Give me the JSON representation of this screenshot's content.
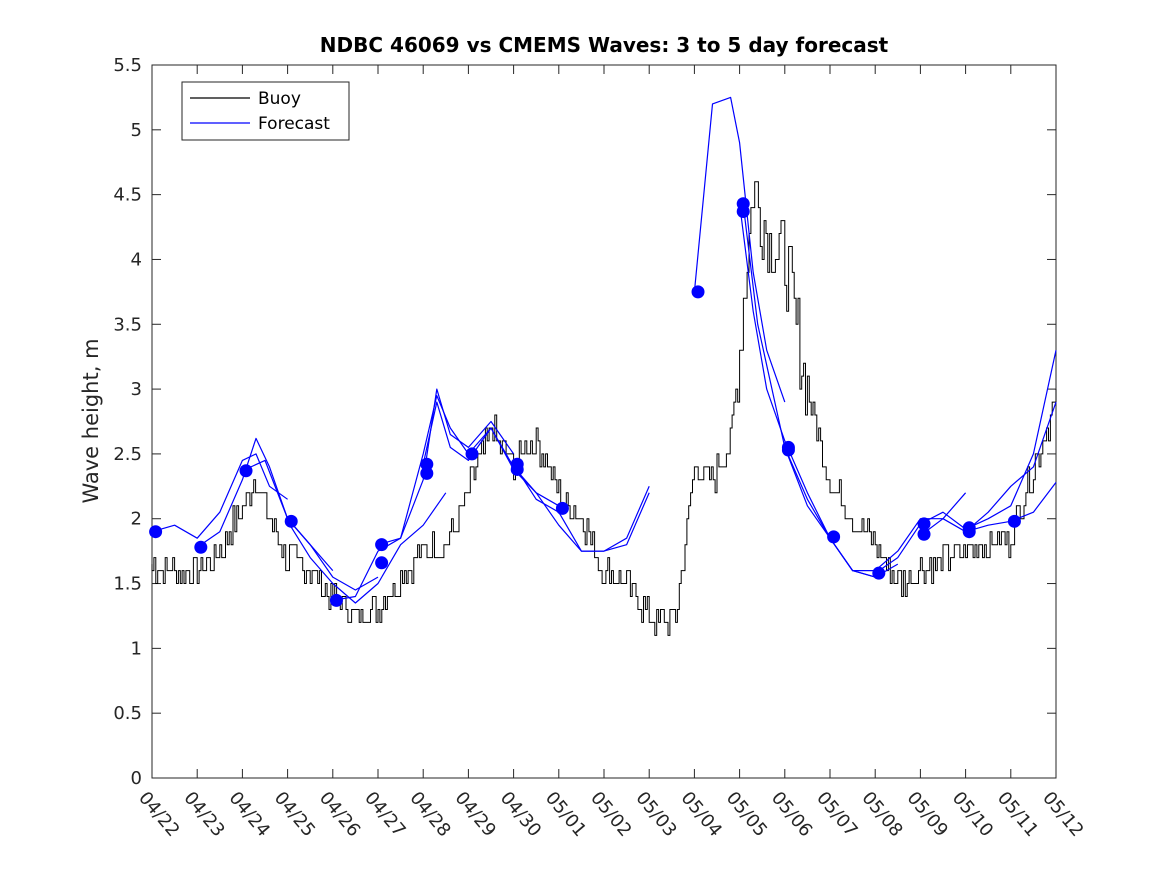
{
  "chart_data": {
    "type": "line",
    "title": "NDBC 46069 vs CMEMS Waves: 3 to 5 day forecast",
    "xlabel": "",
    "ylabel": "Wave height, m",
    "xlim": [
      0,
      20
    ],
    "ylim": [
      0,
      5.5
    ],
    "yticks": [
      0,
      0.5,
      1,
      1.5,
      2,
      2.5,
      3,
      3.5,
      4,
      4.5,
      5,
      5.5
    ],
    "ytick_labels": [
      "0",
      "0.5",
      "1",
      "1.5",
      "2",
      "2.5",
      "3",
      "3.5",
      "4",
      "4.5",
      "5",
      "5.5"
    ],
    "xtick_labels": [
      "04/22",
      "04/23",
      "04/24",
      "04/25",
      "04/26",
      "04/27",
      "04/28",
      "04/29",
      "04/30",
      "05/01",
      "05/02",
      "05/03",
      "05/04",
      "05/05",
      "05/06",
      "05/07",
      "05/08",
      "05/09",
      "05/10",
      "05/11",
      "05/12"
    ],
    "grid": false,
    "legend_position": "top-left",
    "colors": {
      "buoy": "#000000",
      "forecast": "#0000ff"
    },
    "buoy": {
      "name": "Buoy",
      "x": [
        0,
        0.5,
        1,
        1.5,
        2,
        2.3,
        2.6,
        3,
        3.5,
        4,
        4.5,
        5,
        5.5,
        6,
        6.5,
        7,
        7.5,
        8,
        8.3,
        8.6,
        9,
        9.5,
        10,
        10.5,
        11,
        11.3,
        11.6,
        12,
        12.4,
        12.8,
        13,
        13.3,
        13.6,
        14,
        14.5,
        15,
        15.5,
        16,
        16.5,
        17,
        17.5,
        18,
        18.5,
        19,
        19.3,
        19.6,
        20
      ],
      "y": [
        1.65,
        1.6,
        1.6,
        1.75,
        2.1,
        2.3,
        2.0,
        1.7,
        1.6,
        1.4,
        1.25,
        1.3,
        1.55,
        1.75,
        1.8,
        2.2,
        2.7,
        2.4,
        2.6,
        2.55,
        2.2,
        2.0,
        1.6,
        1.5,
        1.25,
        1.2,
        1.25,
        2.4,
        2.3,
        2.6,
        3.3,
        4.6,
        4.2,
        4.0,
        3.0,
        2.3,
        2.0,
        1.8,
        1.5,
        1.6,
        1.7,
        1.75,
        1.8,
        1.85,
        2.2,
        2.5,
        2.9
      ]
    },
    "forecasts": [
      {
        "name": "Forecast",
        "x": [
          0,
          0.5,
          1,
          1.5,
          2,
          2.3,
          2.6,
          3
        ],
        "y": [
          1.9,
          1.95,
          1.85,
          2.05,
          2.45,
          2.5,
          2.25,
          2.15
        ]
      },
      {
        "x": [
          1,
          1.5,
          2,
          2.3,
          2.6,
          3,
          3.5,
          4
        ],
        "y": [
          1.78,
          1.9,
          2.3,
          2.62,
          2.4,
          2.0,
          1.8,
          1.6
        ]
      },
      {
        "x": [
          2,
          2.5,
          3,
          3.5,
          4,
          4.5,
          5
        ],
        "y": [
          2.37,
          2.45,
          2.0,
          1.8,
          1.55,
          1.45,
          1.55
        ]
      },
      {
        "x": [
          3,
          3.5,
          4,
          4.5,
          5,
          5.5,
          6,
          6.5
        ],
        "y": [
          1.98,
          1.7,
          1.5,
          1.35,
          1.5,
          1.8,
          1.95,
          2.2
        ]
      },
      {
        "x": [
          4,
          4.5,
          5,
          5.5,
          6,
          6.3,
          6.6,
          7
        ],
        "y": [
          1.37,
          1.4,
          1.75,
          1.85,
          2.5,
          2.95,
          2.7,
          2.5
        ]
      },
      {
        "x": [
          5,
          5.5,
          6,
          6.3,
          6.6,
          7,
          7.5,
          8
        ],
        "y": [
          1.8,
          1.85,
          2.3,
          3.0,
          2.65,
          2.55,
          2.75,
          2.5
        ]
      },
      {
        "x": [
          6,
          6.3,
          6.6,
          7,
          7.5,
          8,
          8.5,
          9
        ],
        "y": [
          2.42,
          2.9,
          2.55,
          2.45,
          2.7,
          2.4,
          2.2,
          2.1
        ]
      },
      {
        "x": [
          7,
          7.5,
          8,
          8.5,
          9,
          9.5,
          10,
          10.5,
          11
        ],
        "y": [
          2.5,
          2.7,
          2.38,
          2.2,
          1.95,
          1.75,
          1.75,
          1.85,
          2.25
        ]
      },
      {
        "x": [
          8,
          8.5,
          9,
          9.5,
          10,
          10.5,
          11
        ],
        "y": [
          2.42,
          2.15,
          2.05,
          1.75,
          1.75,
          1.8,
          2.2
        ]
      },
      {
        "x": [
          12,
          12.4,
          12.8,
          13,
          13.3,
          13.6,
          14
        ],
        "y": [
          3.75,
          5.2,
          5.25,
          4.9,
          3.9,
          3.3,
          2.9
        ]
      },
      {
        "x": [
          13,
          13.3,
          13.6,
          14,
          14.5,
          15,
          15.5,
          16
        ],
        "y": [
          4.43,
          3.6,
          3.0,
          2.6,
          2.2,
          1.85,
          1.6,
          1.55
        ]
      },
      {
        "x": [
          13.1,
          13.4,
          14,
          14.5,
          15,
          15.5,
          16,
          16.5
        ],
        "y": [
          4.37,
          3.5,
          2.55,
          2.1,
          1.85,
          1.6,
          1.55,
          1.65
        ]
      },
      {
        "x": [
          14,
          14.5,
          15,
          15.5,
          16,
          16.5,
          17,
          17.5,
          18
        ],
        "y": [
          2.55,
          2.15,
          1.85,
          1.6,
          1.6,
          1.75,
          2.0,
          2.0,
          2.2
        ]
      },
      {
        "x": [
          16,
          16.5,
          17,
          17.5,
          18,
          18.5,
          19,
          19.5,
          20
        ],
        "y": [
          1.58,
          1.7,
          1.96,
          2.05,
          1.92,
          2.0,
          2.1,
          2.5,
          3.3
        ]
      },
      {
        "x": [
          17,
          17.5,
          18,
          18.5,
          19,
          19.5,
          20
        ],
        "y": [
          1.87,
          2.0,
          1.9,
          2.05,
          2.25,
          2.4,
          2.9
        ]
      },
      {
        "x": [
          18,
          18.5,
          19,
          19.5,
          20
        ],
        "y": [
          1.9,
          1.95,
          1.98,
          2.05,
          2.28
        ]
      }
    ],
    "initial_points": {
      "x": [
        0.08,
        1.08,
        2.08,
        3.08,
        4.08,
        5.08,
        5.08,
        6.08,
        6.08,
        7.08,
        8.08,
        8.08,
        9.08,
        12.08,
        13.08,
        13.08,
        14.08,
        14.08,
        15.08,
        16.08,
        17.08,
        17.08,
        18.08,
        18.08,
        19.08
      ],
      "y": [
        1.9,
        1.78,
        2.37,
        1.98,
        1.37,
        1.8,
        1.66,
        2.42,
        2.35,
        2.5,
        2.42,
        2.38,
        2.08,
        3.75,
        4.43,
        4.37,
        2.55,
        2.53,
        1.86,
        1.58,
        1.96,
        1.88,
        1.93,
        1.9,
        1.98
      ]
    }
  },
  "legend": {
    "buoy_label": "Buoy",
    "forecast_label": "Forecast"
  }
}
